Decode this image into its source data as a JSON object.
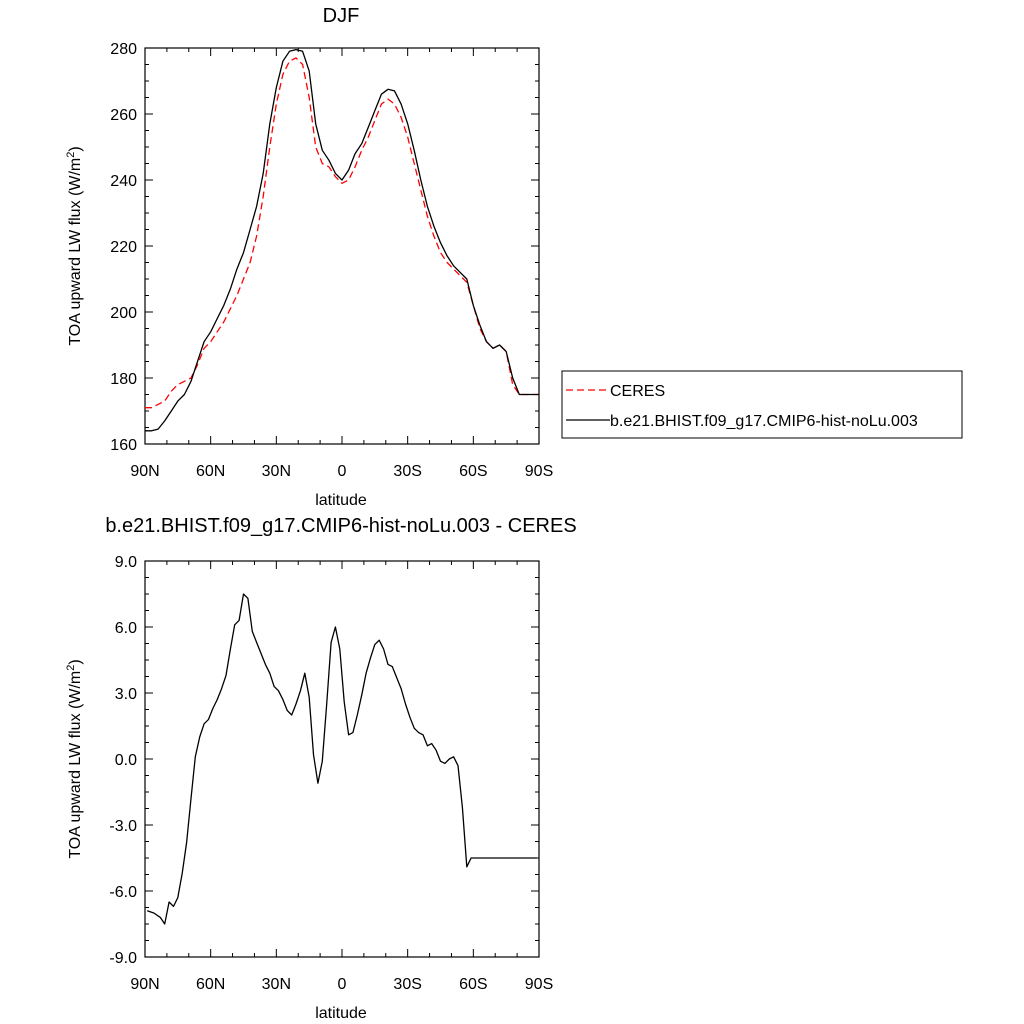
{
  "colors": {
    "model": "#000000",
    "obs": "#ff0000"
  },
  "chart_data": [
    {
      "type": "line",
      "title": "DJF",
      "xlabel": "latitude",
      "ylabel": "TOA upward LW flux (W/m",
      "ylabel_sup": "2",
      "ylabel_close": ")",
      "x_ticks": [
        {
          "lat": 90,
          "label": "90N"
        },
        {
          "lat": 60,
          "label": "60N"
        },
        {
          "lat": 30,
          "label": "30N"
        },
        {
          "lat": 0,
          "label": "0"
        },
        {
          "lat": -30,
          "label": "30S"
        },
        {
          "lat": -60,
          "label": "60S"
        },
        {
          "lat": -90,
          "label": "90S"
        }
      ],
      "xlim": [
        90,
        -90
      ],
      "ylim": [
        160,
        280
      ],
      "y_ticks": [
        {
          "v": 160,
          "label": "160"
        },
        {
          "v": 180,
          "label": "180"
        },
        {
          "v": 200,
          "label": "200"
        },
        {
          "v": 220,
          "label": "220"
        },
        {
          "v": 240,
          "label": "240"
        },
        {
          "v": 260,
          "label": "260"
        },
        {
          "v": 280,
          "label": "280"
        }
      ],
      "legend": {
        "placement": "right",
        "items": [
          "CERES",
          "b.e21.BHIST.f09_g17.CMIP6-hist-noLu.003"
        ]
      },
      "series": [
        {
          "name": "CERES",
          "style": "dashed",
          "color_key": "obs",
          "x": [
            90,
            87,
            84,
            81,
            78,
            75,
            72,
            69,
            66,
            63,
            60,
            57,
            54,
            51,
            48,
            45,
            42,
            39,
            36,
            33,
            30,
            27,
            24,
            21,
            18,
            15,
            12,
            9,
            6,
            3,
            0,
            -3,
            -6,
            -9,
            -12,
            -15,
            -18,
            -21,
            -24,
            -27,
            -30,
            -33,
            -36,
            -39,
            -42,
            -45,
            -48,
            -51,
            -54,
            -57,
            -60,
            -63,
            -66,
            -69,
            -72,
            -75,
            -78,
            -81,
            -84,
            -87,
            -90
          ],
          "y": [
            171,
            171,
            172,
            173,
            176,
            178,
            179,
            180,
            184,
            189,
            191,
            194,
            197,
            201,
            205,
            210,
            215,
            223,
            235,
            250,
            263,
            272,
            276,
            277,
            275,
            265,
            250,
            245,
            244,
            241,
            239,
            240,
            244,
            249,
            253,
            258,
            263,
            264.5,
            263,
            259,
            253,
            245,
            237,
            229,
            223,
            218,
            215,
            213,
            211,
            209,
            202,
            195,
            191,
            189,
            190,
            188,
            178,
            175,
            175,
            175,
            175
          ]
        },
        {
          "name": "b.e21.BHIST.f09_g17.CMIP6-hist-noLu.003",
          "style": "solid",
          "color_key": "model",
          "x": [
            90,
            87,
            84,
            81,
            78,
            75,
            72,
            69,
            66,
            63,
            60,
            57,
            54,
            51,
            48,
            45,
            42,
            39,
            36,
            33,
            30,
            27,
            24,
            21,
            18,
            15,
            12,
            9,
            6,
            3,
            0,
            -3,
            -6,
            -9,
            -12,
            -15,
            -18,
            -21,
            -24,
            -27,
            -30,
            -33,
            -36,
            -39,
            -42,
            -45,
            -48,
            -51,
            -54,
            -57,
            -60,
            -63,
            -66,
            -69,
            -72,
            -75,
            -78,
            -81,
            -84,
            -87,
            -90
          ],
          "y": [
            164,
            164,
            164.5,
            167,
            170,
            173,
            175,
            179,
            185,
            191,
            194,
            198,
            202,
            207,
            213,
            218,
            225,
            232,
            242,
            257,
            268,
            276,
            279,
            279.5,
            279,
            273,
            257,
            249,
            246,
            242,
            240,
            243,
            248,
            251,
            256,
            261,
            266,
            267.5,
            267,
            263,
            257,
            249,
            240,
            232,
            226,
            221,
            217,
            214,
            212,
            210,
            202,
            196,
            191,
            189,
            190,
            188,
            180,
            175,
            175,
            175,
            175
          ]
        }
      ]
    },
    {
      "type": "line",
      "title": "b.e21.BHIST.f09_g17.CMIP6-hist-noLu.003 - CERES",
      "xlabel": "latitude",
      "ylabel": "TOA upward LW flux (W/m",
      "ylabel_sup": "2",
      "ylabel_close": ")",
      "x_ticks": [
        {
          "lat": 90,
          "label": "90N"
        },
        {
          "lat": 60,
          "label": "60N"
        },
        {
          "lat": 30,
          "label": "30N"
        },
        {
          "lat": 0,
          "label": "0"
        },
        {
          "lat": -30,
          "label": "30S"
        },
        {
          "lat": -60,
          "label": "60S"
        },
        {
          "lat": -90,
          "label": "90S"
        }
      ],
      "xlim": [
        90,
        -90
      ],
      "ylim": [
        -9,
        9
      ],
      "y_ticks": [
        {
          "v": -9,
          "label": "-9.0"
        },
        {
          "v": -6,
          "label": "-6.0"
        },
        {
          "v": -3,
          "label": "-3.0"
        },
        {
          "v": 0,
          "label": "0.0"
        },
        {
          "v": 3,
          "label": "3.0"
        },
        {
          "v": 6,
          "label": "6.0"
        },
        {
          "v": 9,
          "label": "9.0"
        }
      ],
      "series": [
        {
          "style": "solid",
          "color_key": "model",
          "x": [
            89,
            86,
            83,
            81,
            79,
            77,
            75,
            73,
            71,
            69,
            67,
            65,
            63,
            61,
            59,
            57,
            55,
            53,
            51,
            49,
            47,
            45,
            43,
            41,
            39,
            37,
            35,
            33,
            31,
            29,
            27,
            25,
            23,
            21,
            19,
            17,
            15,
            13,
            11,
            9,
            7,
            5,
            3,
            1,
            -1,
            -3,
            -5,
            -7,
            -9,
            -11,
            -13,
            -15,
            -17,
            -19,
            -21,
            -23,
            -25,
            -27,
            -29,
            -31,
            -33,
            -35,
            -37,
            -39,
            -41,
            -43,
            -45,
            -47,
            -49,
            -51,
            -53,
            -55,
            -57,
            -59,
            -61,
            -63,
            -65,
            -67,
            -69,
            -71,
            -73,
            -75,
            -77,
            -79,
            -81,
            -83,
            -85,
            -87,
            -89
          ],
          "y": [
            -6.9,
            -7.0,
            -7.2,
            -7.5,
            -6.5,
            -6.7,
            -6.3,
            -5.2,
            -3.8,
            -1.8,
            0.1,
            1.0,
            1.6,
            1.8,
            2.3,
            2.7,
            3.2,
            3.8,
            5.0,
            6.1,
            6.3,
            7.5,
            7.3,
            5.8,
            5.3,
            4.8,
            4.3,
            3.9,
            3.3,
            3.1,
            2.7,
            2.2,
            2.0,
            2.5,
            3.1,
            3.9,
            2.8,
            0.2,
            -1.1,
            -0.1,
            2.5,
            5.3,
            6.0,
            5.0,
            2.6,
            1.1,
            1.2,
            2.0,
            2.9,
            3.9,
            4.6,
            5.2,
            5.4,
            5.0,
            4.3,
            4.2,
            3.7,
            3.2,
            2.5,
            1.9,
            1.4,
            1.2,
            1.1,
            0.6,
            0.7,
            0.4,
            -0.1,
            -0.2,
            0.0,
            0.1,
            -0.3,
            -2.2,
            -4.9,
            -4.5,
            -4.5,
            -4.5,
            -4.5,
            -4.5,
            -4.5,
            -4.5,
            -4.5,
            -4.5,
            -4.5,
            -4.5,
            -4.5,
            -4.5,
            -4.5,
            -4.5,
            -4.5
          ]
        }
      ]
    }
  ]
}
